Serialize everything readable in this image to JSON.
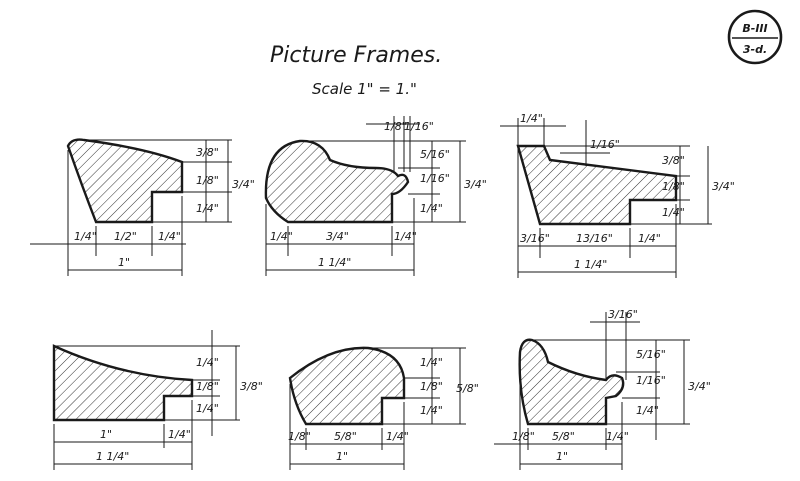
{
  "title": "Picture Frames.",
  "scale": "Scale 1\" = 1.\"",
  "plate": {
    "top": "B-III",
    "bottom": "3-d."
  },
  "figures": [
    {
      "id": "frame-1",
      "dims": [
        "1/4\"",
        "1/2\"",
        "1/4\"",
        "1\"",
        "3/8\"",
        "1/8\"",
        "1/4\"",
        "3/4\""
      ]
    },
    {
      "id": "frame-2",
      "dims": [
        "1/8\"",
        "1/16\"",
        "1/4\"",
        "3/4\"",
        "1/4\"",
        "1 1/4\"",
        "5/16\"",
        "1/16\"",
        "1/4\"",
        "3/4\""
      ]
    },
    {
      "id": "frame-3",
      "dims": [
        "1/4\"",
        "1/16\"",
        "3/16\"",
        "13/16\"",
        "1/4\"",
        "1 1/4\"",
        "3/8\"",
        "1/8\"",
        "1/4\"",
        "3/4\""
      ]
    },
    {
      "id": "frame-4",
      "dims": [
        "1/4\"",
        "1/8\"",
        "1/4\"",
        "3/8\"",
        "1\"",
        "1/4\"",
        "1 1/4\""
      ]
    },
    {
      "id": "frame-5",
      "dims": [
        "1/4\"",
        "1/8\"",
        "1/4\"",
        "5/8\"",
        "1/8\"",
        "5/8\"",
        "1/4\"",
        "1\""
      ]
    },
    {
      "id": "frame-6",
      "dims": [
        "3/16\"",
        "5/16\"",
        "1/16\"",
        "1/4\"",
        "3/4\"",
        "1/8\"",
        "5/8\"",
        "1/4\"",
        "1\""
      ]
    }
  ]
}
